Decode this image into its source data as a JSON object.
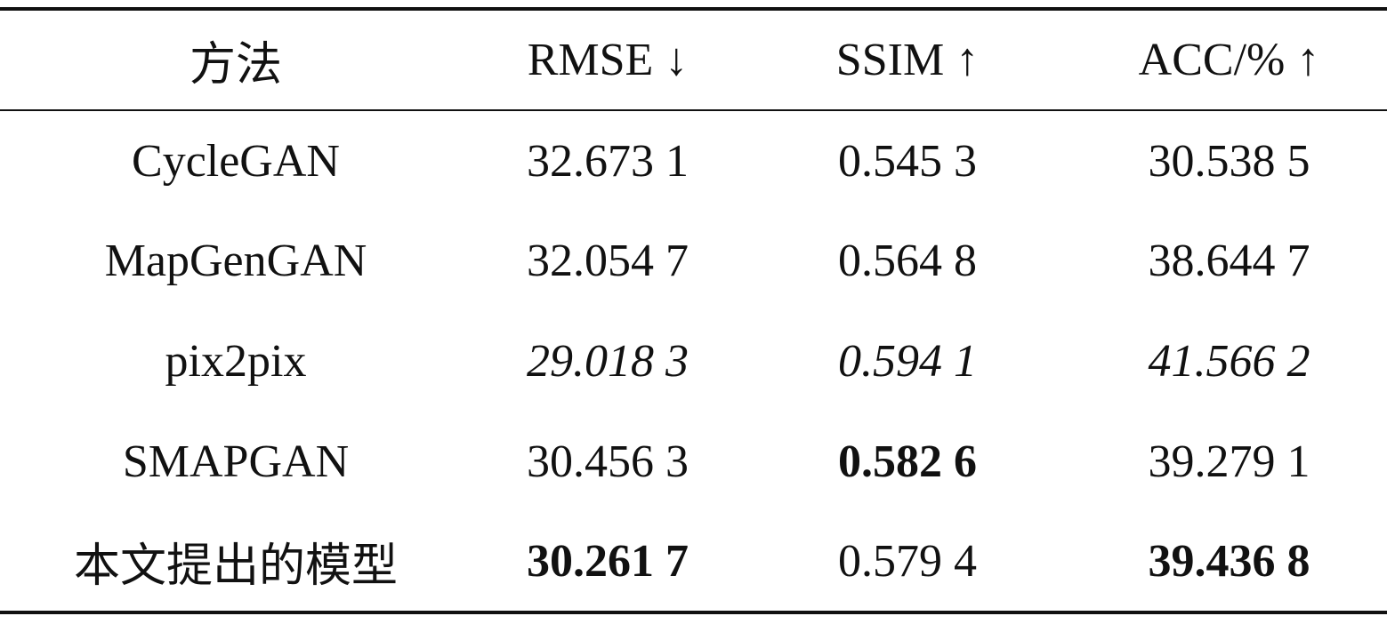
{
  "table": {
    "header": [
      "方法",
      "RMSE ↓",
      "SSIM ↑",
      "ACC/% ↑"
    ],
    "rows": [
      [
        "CycleGAN",
        "32.673 1",
        "0.545 3",
        "30.538 5"
      ],
      [
        "MapGenGAN",
        "32.054 7",
        "0.564 8",
        "38.644 7"
      ],
      [
        "pix2pix",
        "29.018 3",
        "0.594 1",
        "41.566 2"
      ],
      [
        "SMAPGAN",
        "30.456 3",
        "0.582 6",
        "39.279 1"
      ],
      [
        "本文提出的模型",
        "30.261 7",
        "0.579 4",
        "39.436 8"
      ]
    ]
  }
}
